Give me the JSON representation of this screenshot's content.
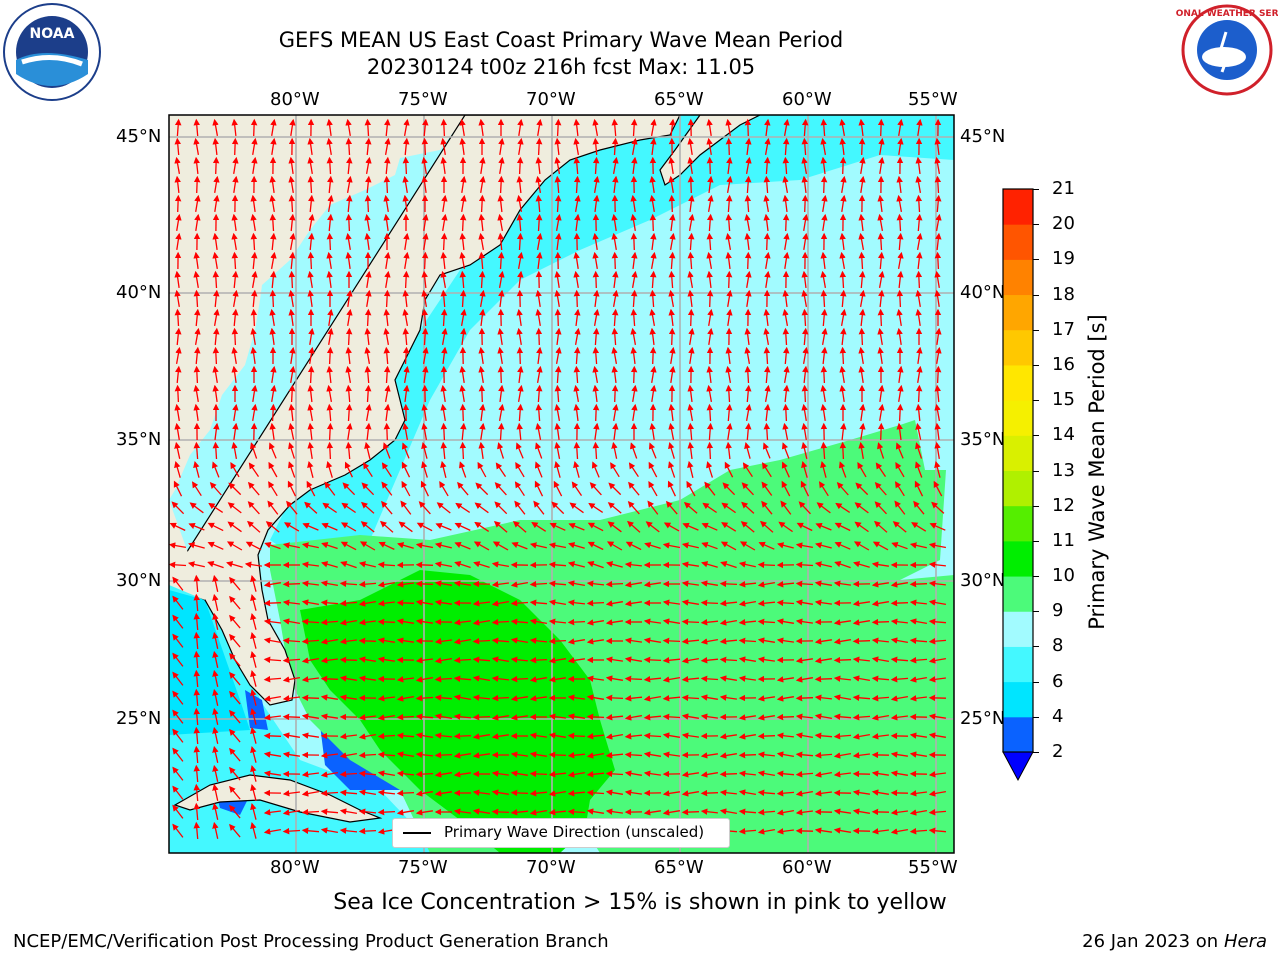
{
  "header": {
    "title_line1": "GEFS MEAN US East Coast Primary Wave Mean Period",
    "title_line2": "20230124 t00z 216h fcst   Max: 11.05"
  },
  "logos": {
    "left_text": "NOAA",
    "right_text": "NATIONAL WEATHER SERVICE"
  },
  "map": {
    "lon_labels": [
      "80°W",
      "75°W",
      "70°W",
      "65°W",
      "60°W",
      "55°W"
    ],
    "lat_labels": [
      "45°N",
      "40°N",
      "35°N",
      "30°N",
      "25°N"
    ],
    "legend_text": "Primary Wave Direction (unscaled)",
    "land_color": "#efedde",
    "arrow_color": "#ff0000"
  },
  "colorbar": {
    "label": "Primary Wave Mean Period [s]",
    "ticks": [
      "2",
      "4",
      "6",
      "8",
      "9",
      "10",
      "11",
      "12",
      "13",
      "14",
      "15",
      "16",
      "17",
      "18",
      "19",
      "20",
      "21"
    ],
    "colors": [
      "#0a62ff",
      "#00e5ff",
      "#44f8ff",
      "#a2fbff",
      "#4cfa7a",
      "#00ee00",
      "#55ee00",
      "#b0f000",
      "#d9f000",
      "#f5f000",
      "#ffe700",
      "#ffc800",
      "#ffa600",
      "#ff8200",
      "#ff5500",
      "#ff2200",
      "#ff0000"
    ],
    "under_color": "#0000ff"
  },
  "note": "Sea Ice Concentration > 15% is shown in pink to yellow",
  "footer": {
    "left": "NCEP/EMC/Verification Post Processing Product Generation Branch",
    "right_date": "26 Jan 2023 on ",
    "right_host": "Hera"
  }
}
